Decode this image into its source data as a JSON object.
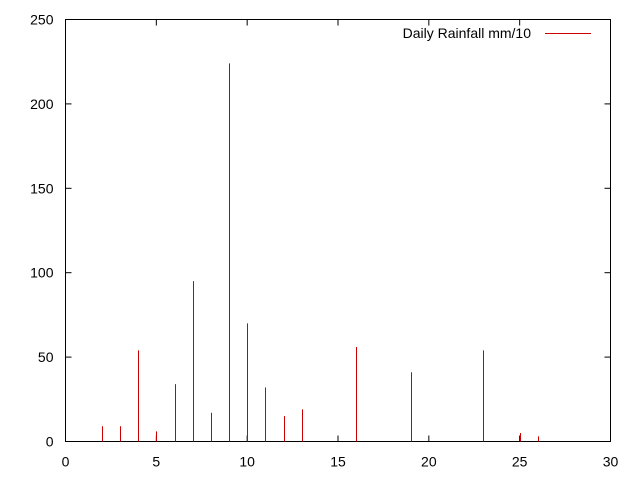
{
  "chart_data": {
    "type": "bar",
    "style": "impulses",
    "title": "",
    "xlabel": "",
    "ylabel": "",
    "xlim": [
      0,
      30
    ],
    "ylim": [
      0,
      250
    ],
    "xticks": [
      0,
      5,
      10,
      15,
      20,
      25,
      30
    ],
    "yticks": [
      0,
      50,
      100,
      150,
      200,
      250
    ],
    "grid": false,
    "legend_position": "top-right",
    "series": [
      {
        "name": "Daily Rainfall mm/10",
        "color": "#cc0000",
        "x": [
          2,
          3,
          4,
          5,
          6,
          7,
          8,
          9,
          10,
          11,
          12,
          13,
          16,
          19,
          23,
          25,
          26
        ],
        "values": [
          9,
          9,
          54,
          6,
          34,
          95,
          17,
          224,
          70,
          32,
          15,
          19,
          56,
          41,
          54,
          5,
          3
        ]
      }
    ]
  }
}
